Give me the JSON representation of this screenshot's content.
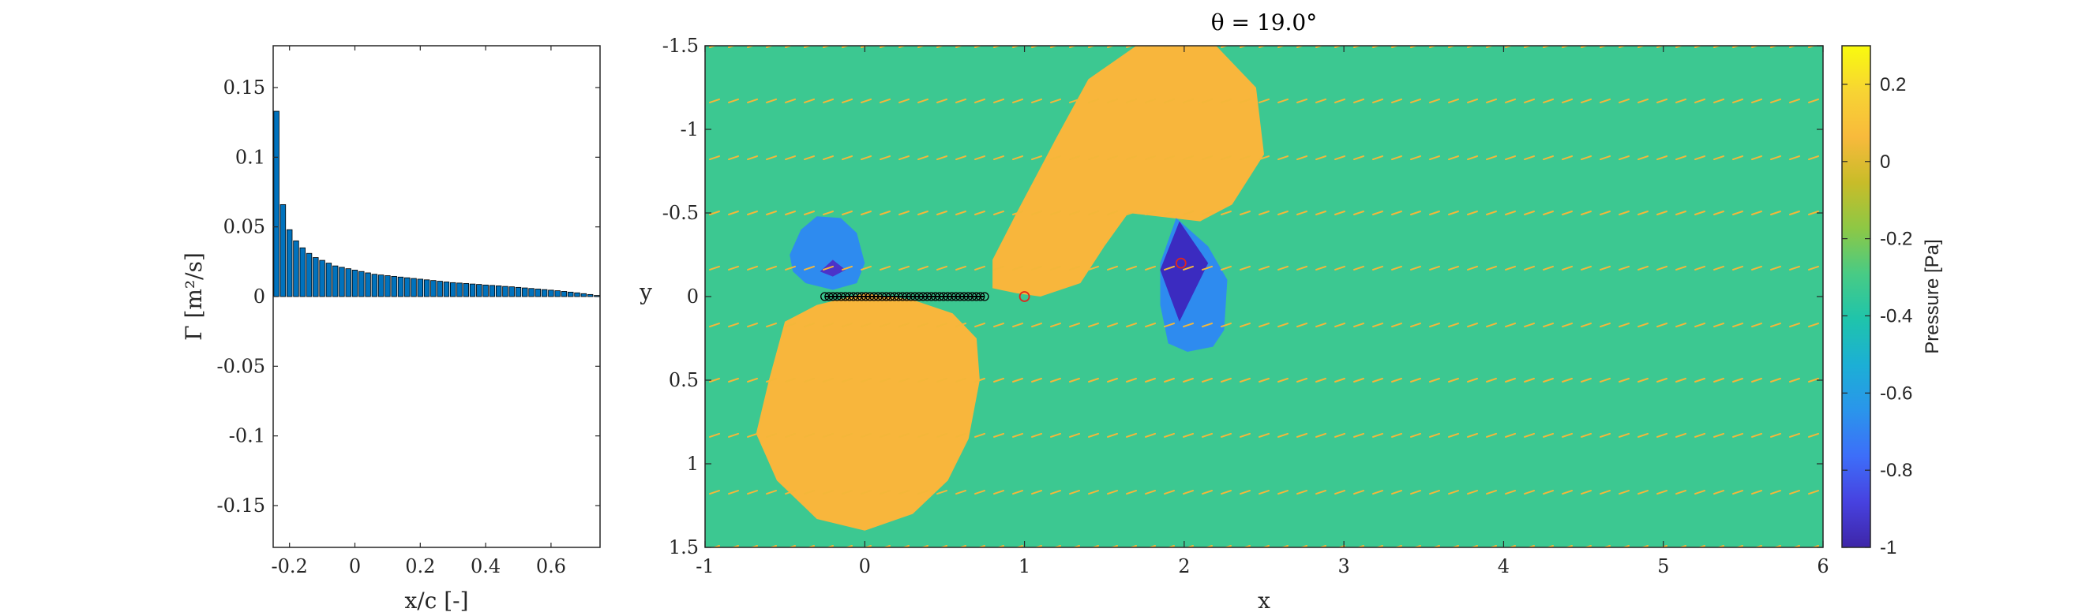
{
  "chart_data": [
    {
      "type": "bar",
      "xlabel": "x/c [-]",
      "ylabel": "Γ [m²/s]",
      "xlim": [
        -0.25,
        0.75
      ],
      "ylim": [
        -0.18,
        0.18
      ],
      "xticks": [
        "-0.2",
        "0",
        "0.2",
        "0.4",
        "0.6"
      ],
      "yticks": [
        "-0.15",
        "-0.1",
        "-0.05",
        "0",
        "0.05",
        "0.1",
        "0.15"
      ],
      "bar_color": "#0072BD",
      "x": [
        -0.24,
        -0.22,
        -0.2,
        -0.18,
        -0.16,
        -0.14,
        -0.12,
        -0.1,
        -0.08,
        -0.06,
        -0.04,
        -0.02,
        0.0,
        0.02,
        0.04,
        0.06,
        0.08,
        0.1,
        0.12,
        0.14,
        0.16,
        0.18,
        0.2,
        0.22,
        0.24,
        0.26,
        0.28,
        0.3,
        0.32,
        0.34,
        0.36,
        0.38,
        0.4,
        0.42,
        0.44,
        0.46,
        0.48,
        0.5,
        0.52,
        0.54,
        0.56,
        0.58,
        0.6,
        0.62,
        0.64,
        0.66,
        0.68,
        0.7,
        0.72,
        0.74
      ],
      "values": [
        0.133,
        0.066,
        0.048,
        0.04,
        0.035,
        0.031,
        0.028,
        0.026,
        0.024,
        0.022,
        0.021,
        0.02,
        0.019,
        0.018,
        0.017,
        0.016,
        0.0155,
        0.015,
        0.0145,
        0.014,
        0.0135,
        0.013,
        0.0125,
        0.012,
        0.0115,
        0.011,
        0.0105,
        0.01,
        0.0097,
        0.0094,
        0.009,
        0.0087,
        0.0083,
        0.008,
        0.0077,
        0.0073,
        0.007,
        0.0066,
        0.0062,
        0.0058,
        0.0054,
        0.005,
        0.0046,
        0.0042,
        0.0037,
        0.0032,
        0.0027,
        0.0021,
        0.0015,
        0.0008
      ]
    },
    {
      "type": "heatmap",
      "title": "θ = 19.0°",
      "xlabel": "x",
      "ylabel": "y",
      "xlim": [
        -1,
        6
      ],
      "ylim": [
        -1.5,
        1.5
      ],
      "y_axis_reversed": true,
      "xticks": [
        "-1",
        "0",
        "1",
        "2",
        "3",
        "4",
        "5",
        "6"
      ],
      "yticks": [
        "-1.5",
        "-1",
        "-0.5",
        "0",
        "0.5",
        "1",
        "1.5"
      ],
      "colorbar": {
        "label": "Pressure [Pa]",
        "range": [
          -1,
          0.3
        ],
        "ticks": [
          "0.2",
          "0",
          "-0.2",
          "-0.4",
          "-0.6",
          "-0.8",
          "-1"
        ],
        "colormap": [
          "#3E26A8",
          "#4742E0",
          "#3D6EF9",
          "#2A95EB",
          "#1CAFD5",
          "#1FC4AB",
          "#48CB85",
          "#8DC845",
          "#C8BC29",
          "#F8BA3C",
          "#F7D433",
          "#F9FB0E"
        ]
      },
      "background_level_color": "#3CC891",
      "regions": [
        {
          "name": "suction-above-plate",
          "color": "#2E8BEF",
          "points": [
            [
              -0.47,
              -0.25
            ],
            [
              -0.4,
              -0.4
            ],
            [
              -0.3,
              -0.48
            ],
            [
              -0.15,
              -0.47
            ],
            [
              -0.05,
              -0.38
            ],
            [
              0.0,
              -0.2
            ],
            [
              -0.05,
              -0.08
            ],
            [
              -0.2,
              -0.04
            ],
            [
              -0.37,
              -0.08
            ],
            [
              -0.45,
              -0.15
            ]
          ]
        },
        {
          "name": "strong-suction-above-plate",
          "color": "#4B33C9",
          "points": [
            [
              -0.28,
              -0.15
            ],
            [
              -0.2,
              -0.22
            ],
            [
              -0.12,
              -0.16
            ],
            [
              -0.2,
              -0.12
            ]
          ]
        },
        {
          "name": "overpressure-below-plate",
          "color": "#F8B63C",
          "points": [
            [
              -0.5,
              0.15
            ],
            [
              -0.3,
              0.05
            ],
            [
              0.0,
              -0.02
            ],
            [
              0.3,
              0.02
            ],
            [
              0.55,
              0.1
            ],
            [
              0.7,
              0.25
            ],
            [
              0.72,
              0.5
            ],
            [
              0.65,
              0.85
            ],
            [
              0.52,
              1.1
            ],
            [
              0.3,
              1.3
            ],
            [
              0.0,
              1.4
            ],
            [
              -0.3,
              1.33
            ],
            [
              -0.55,
              1.1
            ],
            [
              -0.68,
              0.82
            ],
            [
              -0.6,
              0.5
            ]
          ]
        },
        {
          "name": "overpressure-wake",
          "color": "#F8B63C",
          "points": [
            [
              0.8,
              -0.05
            ],
            [
              0.8,
              -0.22
            ],
            [
              0.95,
              -0.5
            ],
            [
              1.2,
              -0.95
            ],
            [
              1.4,
              -1.3
            ],
            [
              1.7,
              -1.5
            ],
            [
              2.2,
              -1.5
            ],
            [
              2.45,
              -1.25
            ],
            [
              2.5,
              -0.85
            ],
            [
              2.3,
              -0.55
            ],
            [
              2.1,
              -0.45
            ],
            [
              1.65,
              -0.5
            ],
            [
              1.5,
              -0.3
            ],
            [
              1.35,
              -0.08
            ],
            [
              1.1,
              0.0
            ],
            [
              0.95,
              -0.02
            ]
          ]
        },
        {
          "name": "suction-wake-vortex",
          "color": "#2E8BEF",
          "points": [
            [
              1.85,
              -0.2
            ],
            [
              1.95,
              -0.47
            ],
            [
              2.15,
              -0.3
            ],
            [
              2.27,
              -0.1
            ],
            [
              2.25,
              0.2
            ],
            [
              2.18,
              0.3
            ],
            [
              2.02,
              0.33
            ],
            [
              1.9,
              0.28
            ],
            [
              1.85,
              0.05
            ]
          ]
        },
        {
          "name": "strong-suction-wake-vortex",
          "color": "#3B2BC0",
          "points": [
            [
              1.97,
              -0.45
            ],
            [
              2.15,
              -0.2
            ],
            [
              1.97,
              0.15
            ],
            [
              1.85,
              -0.16
            ]
          ]
        }
      ],
      "streamline_rows_y": [
        -1.5,
        -1.17,
        -0.83,
        -0.5,
        -0.17,
        0.17,
        0.5,
        0.83,
        1.17,
        1.5
      ],
      "plate": {
        "x_start": -0.25,
        "x_end": 0.75,
        "y": 0.0,
        "markers": 40
      },
      "red_markers": [
        [
          1.0,
          0.0
        ],
        [
          1.98,
          -0.2
        ]
      ]
    }
  ]
}
